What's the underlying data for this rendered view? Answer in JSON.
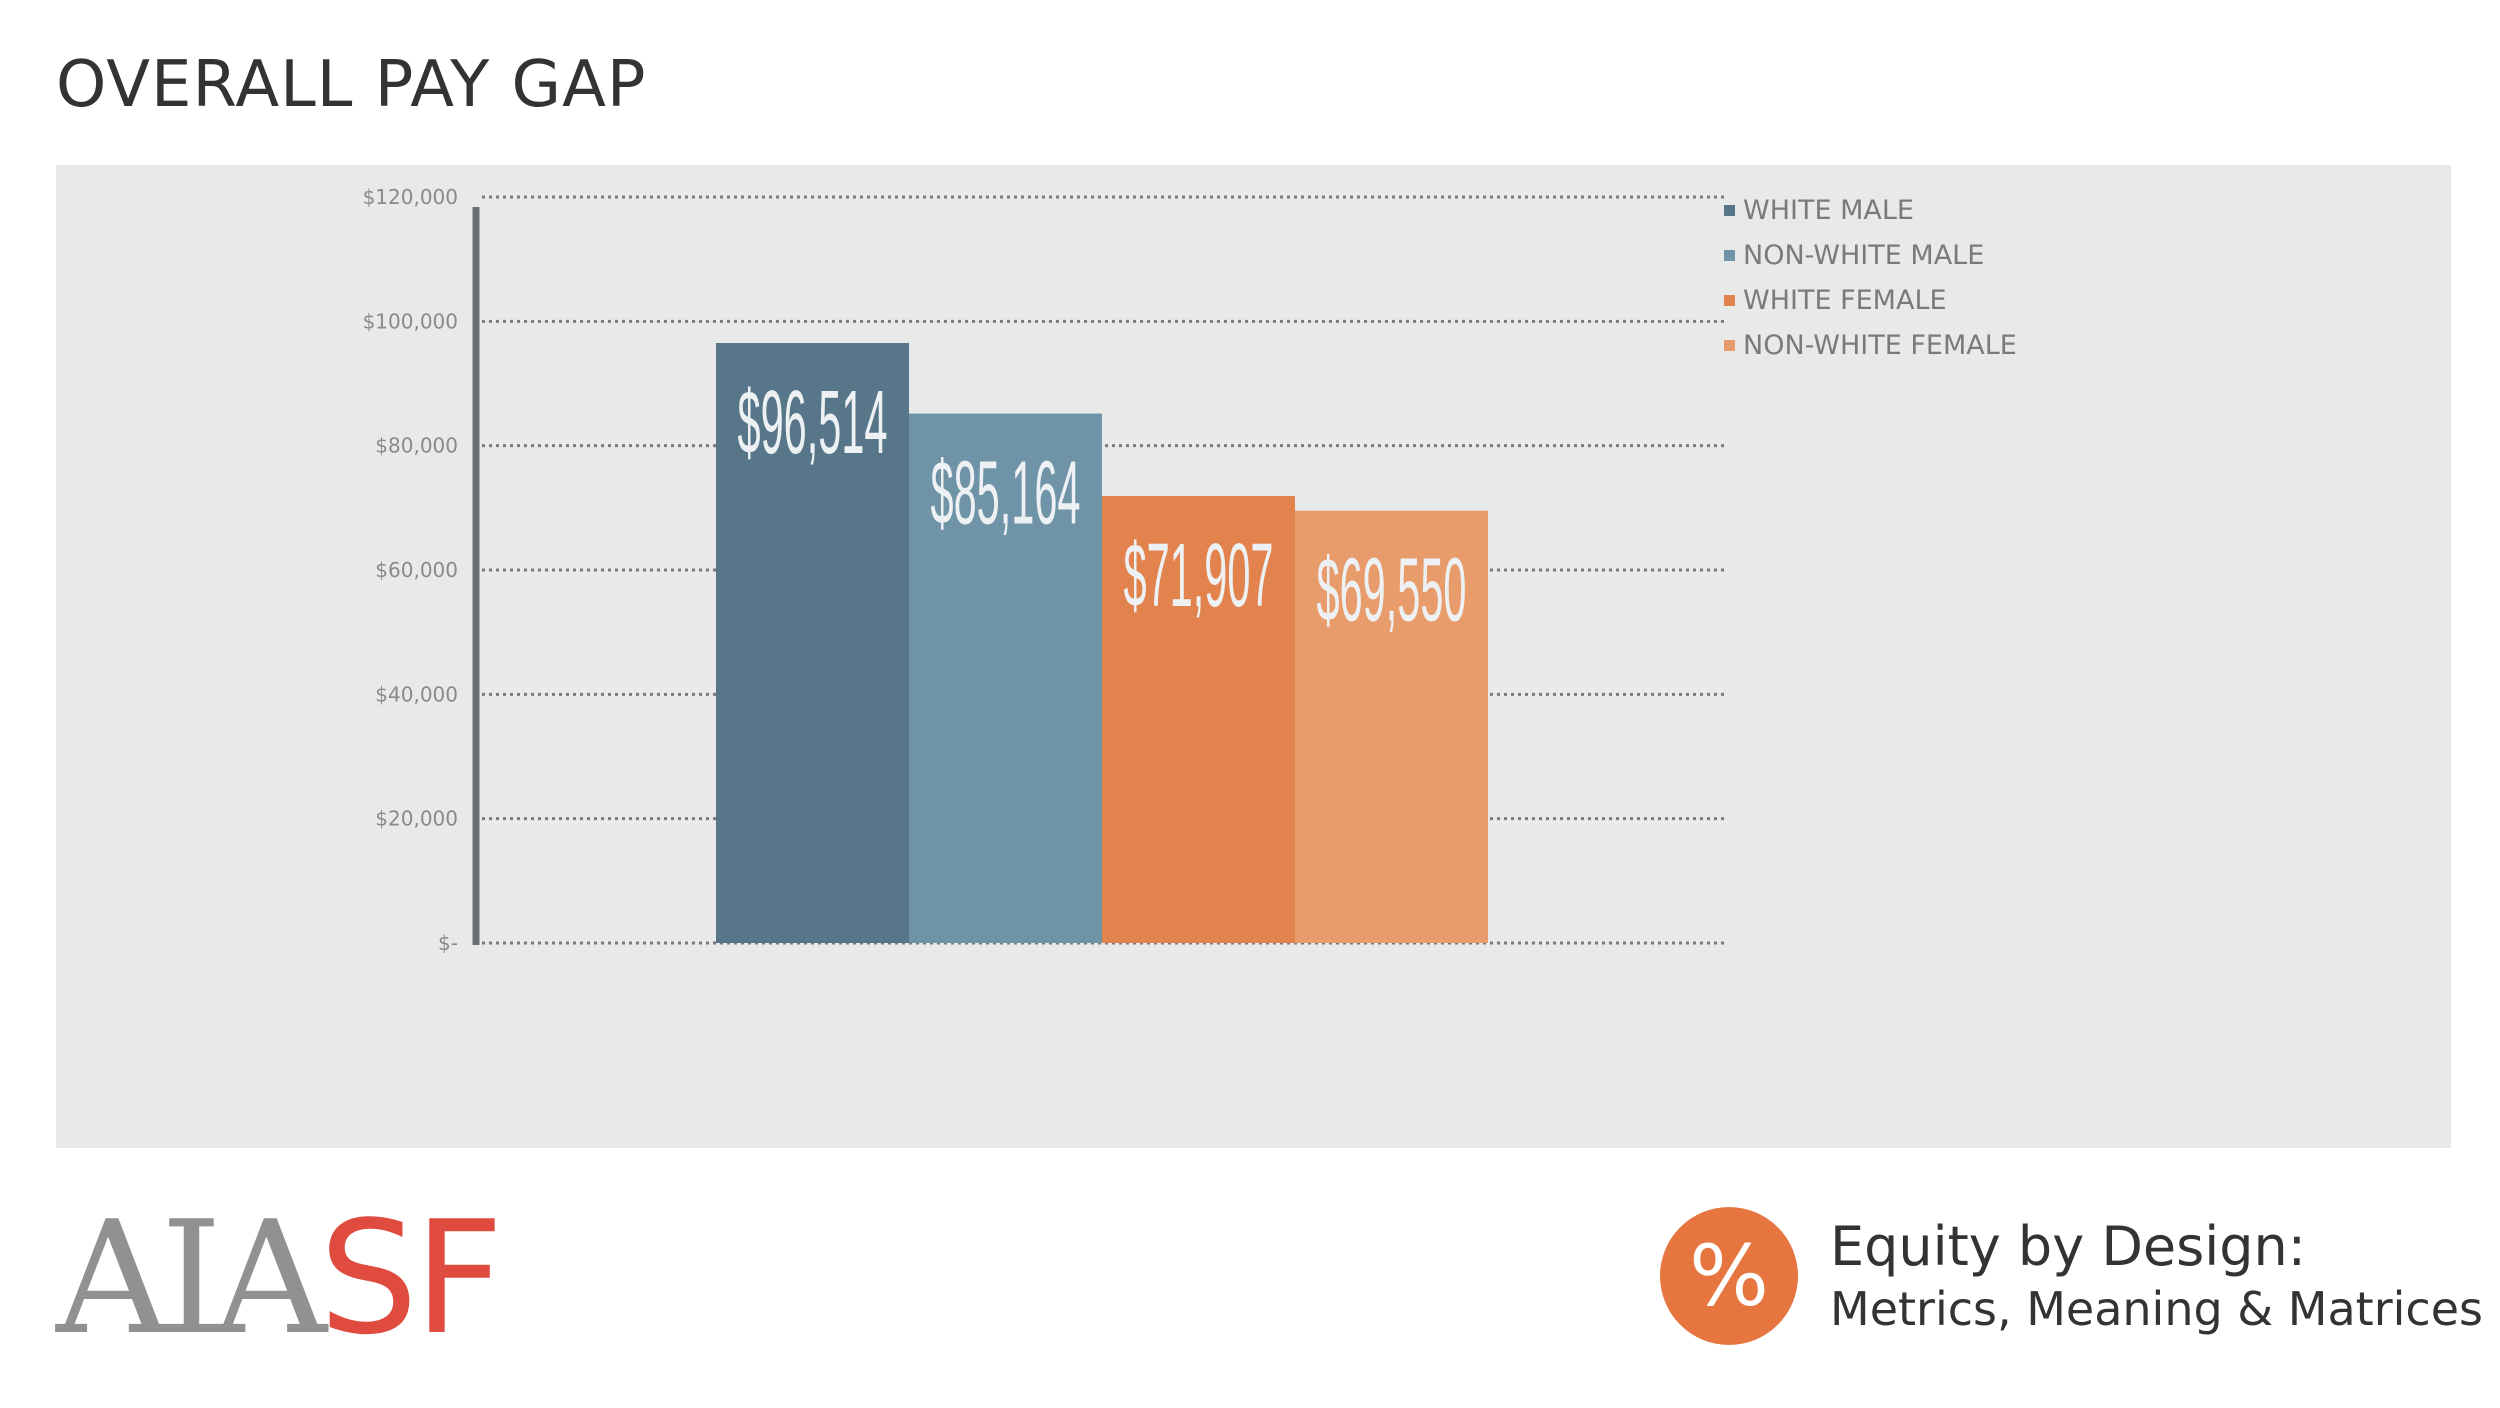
{
  "slide": {
    "title": "OVERALL PAY GAP"
  },
  "colors": {
    "panel_bg": "#e8eaea",
    "white_male": "#58768a",
    "nonwhite_male": "#6f93a7",
    "white_female": "#e2834e",
    "nonwhite_female": "#e89c6c",
    "accent": "#e7753f"
  },
  "chart_data": {
    "type": "bar",
    "title": "OVERALL PAY GAP",
    "xlabel": "",
    "ylabel": "",
    "ylim": [
      0,
      120000
    ],
    "yticks": [
      0,
      20000,
      40000,
      60000,
      80000,
      100000,
      120000
    ],
    "ytick_labels": [
      "$-",
      "$20,000",
      "$40,000",
      "$60,000",
      "$80,000",
      "$100,000",
      "$120,000"
    ],
    "grid": true,
    "legend_position": "top-right",
    "series": [
      {
        "name": "WHITE MALE",
        "value": 96514,
        "label": "$96,514",
        "color": "#58768a"
      },
      {
        "name": "NON-WHITE MALE",
        "value": 85164,
        "label": "$85,164",
        "color": "#6f93a7"
      },
      {
        "name": "WHITE FEMALE",
        "value": 71907,
        "label": "$71,907",
        "color": "#e2834e"
      },
      {
        "name": "NON-WHITE FEMALE",
        "value": 69550,
        "label": "$69,550",
        "color": "#e89c6c"
      }
    ]
  },
  "footer": {
    "logo_primary": "AIA",
    "logo_secondary": "SF",
    "badge_symbol": "%",
    "tagline_line1": "Equity by Design:",
    "tagline_line2": "Metrics, Meaning & Matrices"
  }
}
